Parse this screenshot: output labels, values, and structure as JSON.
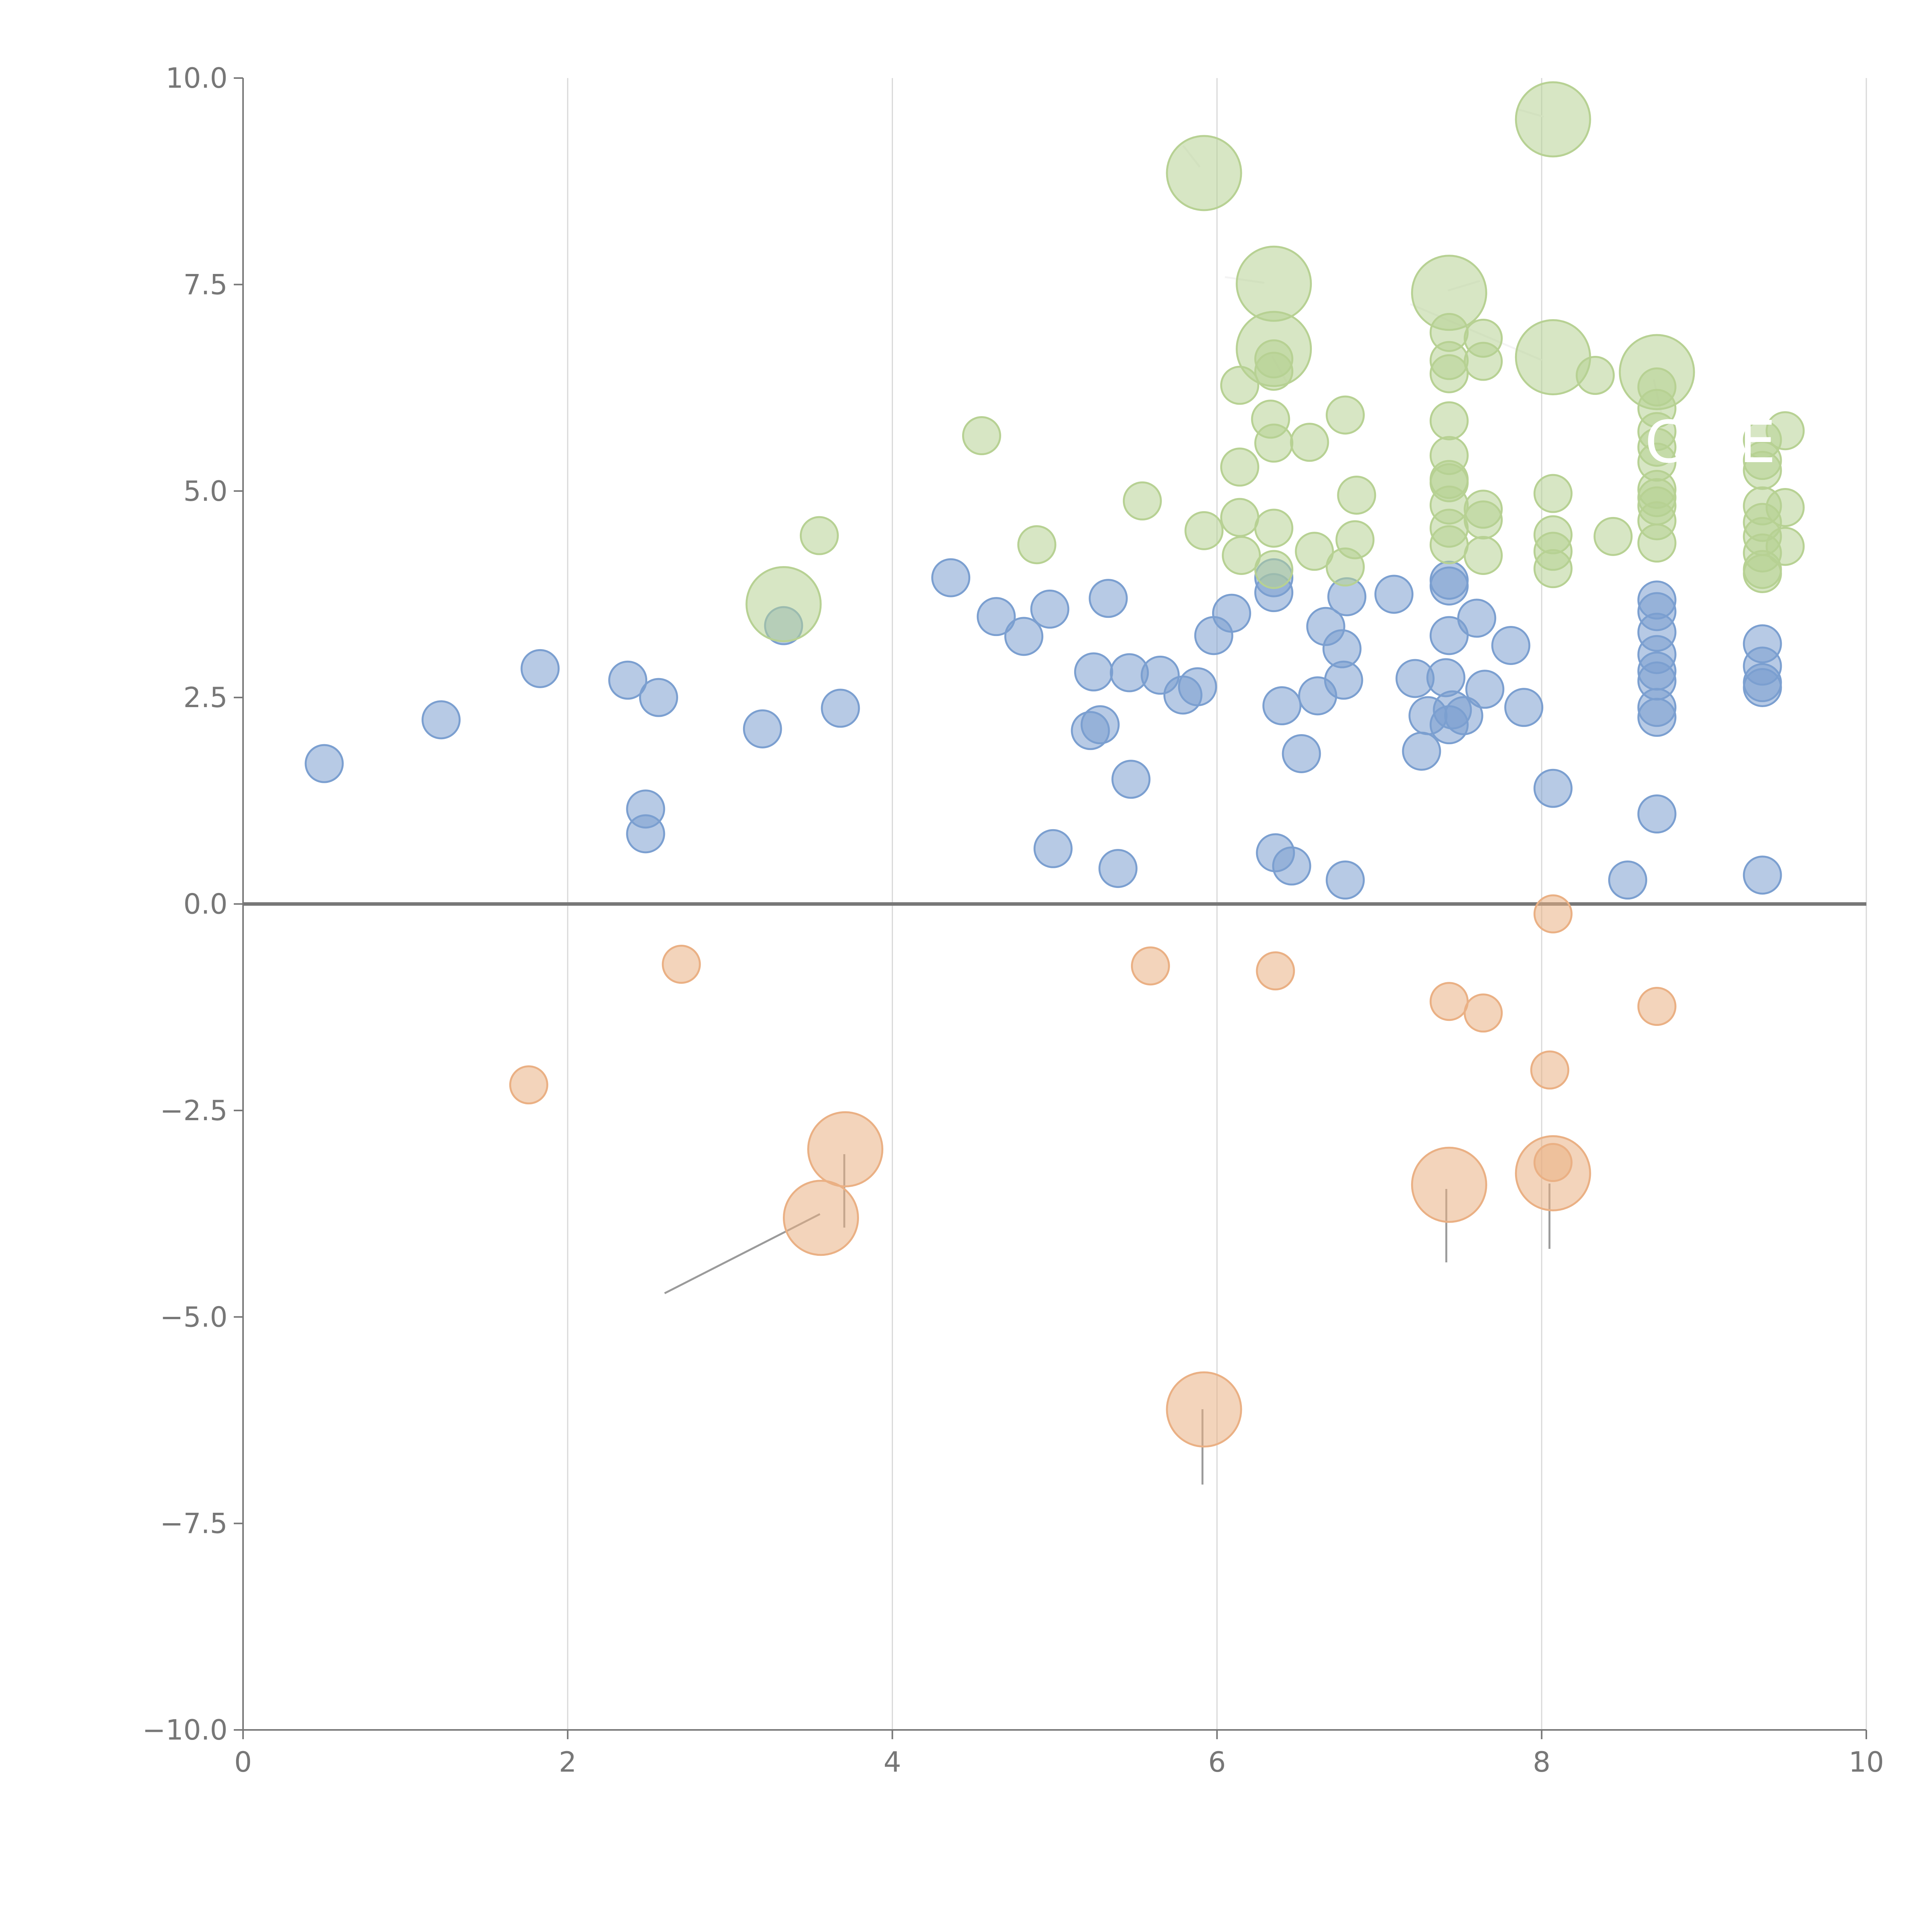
{
  "chart_data": {
    "type": "scatter",
    "title": "",
    "xlabel": "",
    "ylabel": "",
    "xlim": [
      0,
      10
    ],
    "ylim": [
      -10,
      10
    ],
    "grid": "vertical-only",
    "x_ticks": [
      "0",
      "2",
      "4",
      "6",
      "8",
      "10"
    ],
    "y_ticks": [
      "10.0",
      "7.5",
      "5.0",
      "2.5",
      "0.0",
      "−2.5",
      "−5.0",
      "−7.5",
      "−10.0"
    ],
    "x_tick_values": [
      0,
      2,
      4,
      6,
      8,
      10
    ],
    "y_tick_values": [
      10,
      7.5,
      5,
      2.5,
      0,
      -2.5,
      -5,
      -7.5,
      -10
    ],
    "zero_line": 0,
    "series": [
      {
        "name": "blue",
        "color": "#7b9fd0",
        "points": [
          {
            "x": 0.5,
            "y": 1.7,
            "s": 1
          },
          {
            "x": 1.22,
            "y": 2.23,
            "s": 1
          },
          {
            "x": 1.83,
            "y": 2.85,
            "s": 1
          },
          {
            "x": 2.37,
            "y": 2.71,
            "s": 1
          },
          {
            "x": 2.56,
            "y": 2.5,
            "s": 1
          },
          {
            "x": 2.48,
            "y": 1.15,
            "s": 1
          },
          {
            "x": 2.48,
            "y": 0.85,
            "s": 1
          },
          {
            "x": 3.2,
            "y": 2.12,
            "s": 1
          },
          {
            "x": 3.33,
            "y": 3.37,
            "s": 1
          },
          {
            "x": 3.68,
            "y": 2.37,
            "s": 1
          },
          {
            "x": 4.36,
            "y": 3.95,
            "s": 1
          },
          {
            "x": 4.64,
            "y": 3.48,
            "s": 1
          },
          {
            "x": 4.81,
            "y": 3.24,
            "s": 1
          },
          {
            "x": 4.97,
            "y": 3.57,
            "s": 1
          },
          {
            "x": 4.99,
            "y": 0.67,
            "s": 1
          },
          {
            "x": 5.24,
            "y": 2.81,
            "s": 1
          },
          {
            "x": 5.22,
            "y": 2.1,
            "s": 1
          },
          {
            "x": 5.28,
            "y": 2.17,
            "s": 1
          },
          {
            "x": 5.33,
            "y": 3.7,
            "s": 1
          },
          {
            "x": 5.39,
            "y": 0.43,
            "s": 1
          },
          {
            "x": 5.46,
            "y": 2.8,
            "s": 1
          },
          {
            "x": 5.47,
            "y": 1.51,
            "s": 1
          },
          {
            "x": 5.65,
            "y": 2.77,
            "s": 1
          },
          {
            "x": 5.79,
            "y": 2.53,
            "s": 1
          },
          {
            "x": 5.88,
            "y": 2.63,
            "s": 1
          },
          {
            "x": 5.98,
            "y": 3.25,
            "s": 1
          },
          {
            "x": 6.09,
            "y": 3.52,
            "s": 1
          },
          {
            "x": 6.35,
            "y": 3.77,
            "s": 1
          },
          {
            "x": 6.35,
            "y": 3.95,
            "s": 1
          },
          {
            "x": 6.36,
            "y": 0.62,
            "s": 1
          },
          {
            "x": 6.4,
            "y": 2.4,
            "s": 1
          },
          {
            "x": 6.46,
            "y": 0.46,
            "s": 1
          },
          {
            "x": 6.52,
            "y": 1.82,
            "s": 1
          },
          {
            "x": 6.62,
            "y": 2.52,
            "s": 1
          },
          {
            "x": 6.67,
            "y": 3.36,
            "s": 1
          },
          {
            "x": 6.77,
            "y": 3.09,
            "s": 1
          },
          {
            "x": 6.78,
            "y": 2.71,
            "s": 1
          },
          {
            "x": 6.8,
            "y": 3.72,
            "s": 1
          },
          {
            "x": 6.79,
            "y": 0.29,
            "s": 1
          },
          {
            "x": 7.09,
            "y": 3.75,
            "s": 1
          },
          {
            "x": 7.22,
            "y": 2.73,
            "s": 1
          },
          {
            "x": 7.26,
            "y": 1.85,
            "s": 1
          },
          {
            "x": 7.3,
            "y": 2.28,
            "s": 1
          },
          {
            "x": 7.41,
            "y": 2.74,
            "s": 1
          },
          {
            "x": 7.43,
            "y": 3.25,
            "s": 1
          },
          {
            "x": 7.43,
            "y": 3.85,
            "s": 1
          },
          {
            "x": 7.43,
            "y": 3.92,
            "s": 1
          },
          {
            "x": 7.45,
            "y": 2.35,
            "s": 1
          },
          {
            "x": 7.43,
            "y": 2.17,
            "s": 1
          },
          {
            "x": 7.52,
            "y": 2.28,
            "s": 1
          },
          {
            "x": 7.6,
            "y": 3.46,
            "s": 1
          },
          {
            "x": 7.65,
            "y": 2.6,
            "s": 1
          },
          {
            "x": 7.81,
            "y": 3.13,
            "s": 1
          },
          {
            "x": 7.89,
            "y": 2.38,
            "s": 1
          },
          {
            "x": 8.07,
            "y": 1.4,
            "s": 1
          },
          {
            "x": 8.53,
            "y": 0.29,
            "s": 1
          },
          {
            "x": 8.71,
            "y": 3.68,
            "s": 1
          },
          {
            "x": 8.71,
            "y": 3.54,
            "s": 1
          },
          {
            "x": 8.71,
            "y": 3.29,
            "s": 1
          },
          {
            "x": 8.71,
            "y": 3.02,
            "s": 1
          },
          {
            "x": 8.71,
            "y": 2.82,
            "s": 1
          },
          {
            "x": 8.71,
            "y": 2.7,
            "s": 1
          },
          {
            "x": 8.71,
            "y": 2.38,
            "s": 1
          },
          {
            "x": 8.71,
            "y": 2.26,
            "s": 1
          },
          {
            "x": 8.71,
            "y": 1.09,
            "s": 1
          },
          {
            "x": 9.36,
            "y": 3.15,
            "s": 1
          },
          {
            "x": 9.36,
            "y": 2.88,
            "s": 1
          },
          {
            "x": 9.36,
            "y": 2.68,
            "s": 1
          },
          {
            "x": 9.36,
            "y": 2.62,
            "s": 1
          },
          {
            "x": 9.36,
            "y": 0.35,
            "s": 1
          }
        ]
      },
      {
        "name": "green",
        "color": "#b7d193",
        "points": [
          {
            "x": 3.33,
            "y": 3.63,
            "s": 2
          },
          {
            "x": 3.55,
            "y": 4.46,
            "s": 1
          },
          {
            "x": 4.55,
            "y": 5.67,
            "s": 1
          },
          {
            "x": 4.89,
            "y": 4.35,
            "s": 1
          },
          {
            "x": 5.54,
            "y": 4.88,
            "s": 1
          },
          {
            "x": 5.92,
            "y": 8.85,
            "s": 2
          },
          {
            "x": 5.92,
            "y": 4.52,
            "s": 1
          },
          {
            "x": 6.14,
            "y": 6.28,
            "s": 1
          },
          {
            "x": 6.14,
            "y": 5.29,
            "s": 1
          },
          {
            "x": 6.14,
            "y": 4.68,
            "s": 1
          },
          {
            "x": 6.15,
            "y": 4.22,
            "s": 1
          },
          {
            "x": 6.33,
            "y": 5.87,
            "s": 1
          },
          {
            "x": 6.35,
            "y": 7.51,
            "s": 2
          },
          {
            "x": 6.35,
            "y": 6.72,
            "s": 2
          },
          {
            "x": 6.35,
            "y": 6.6,
            "s": 1
          },
          {
            "x": 6.35,
            "y": 6.45,
            "s": 1
          },
          {
            "x": 6.35,
            "y": 5.58,
            "s": 1
          },
          {
            "x": 6.35,
            "y": 4.55,
            "s": 1
          },
          {
            "x": 6.35,
            "y": 4.05,
            "s": 1
          },
          {
            "x": 6.57,
            "y": 5.59,
            "s": 1
          },
          {
            "x": 6.6,
            "y": 4.27,
            "s": 1
          },
          {
            "x": 6.79,
            "y": 5.92,
            "s": 1
          },
          {
            "x": 6.79,
            "y": 4.08,
            "s": 1
          },
          {
            "x": 6.86,
            "y": 4.95,
            "s": 1
          },
          {
            "x": 6.85,
            "y": 4.41,
            "s": 1
          },
          {
            "x": 7.43,
            "y": 7.4,
            "s": 2
          },
          {
            "x": 7.43,
            "y": 6.92,
            "s": 1
          },
          {
            "x": 7.43,
            "y": 6.58,
            "s": 1
          },
          {
            "x": 7.43,
            "y": 6.42,
            "s": 1
          },
          {
            "x": 7.43,
            "y": 5.85,
            "s": 1
          },
          {
            "x": 7.43,
            "y": 5.43,
            "s": 1
          },
          {
            "x": 7.43,
            "y": 5.14,
            "s": 1
          },
          {
            "x": 7.43,
            "y": 5.1,
            "s": 1
          },
          {
            "x": 7.43,
            "y": 4.83,
            "s": 1
          },
          {
            "x": 7.43,
            "y": 4.55,
            "s": 1
          },
          {
            "x": 7.43,
            "y": 4.35,
            "s": 1
          },
          {
            "x": 7.64,
            "y": 6.85,
            "s": 1
          },
          {
            "x": 7.64,
            "y": 6.57,
            "s": 1
          },
          {
            "x": 7.64,
            "y": 4.78,
            "s": 1
          },
          {
            "x": 7.64,
            "y": 4.65,
            "s": 1
          },
          {
            "x": 7.64,
            "y": 4.22,
            "s": 1
          },
          {
            "x": 8.07,
            "y": 9.5,
            "s": 2
          },
          {
            "x": 8.07,
            "y": 6.62,
            "s": 2
          },
          {
            "x": 8.07,
            "y": 4.97,
            "s": 1
          },
          {
            "x": 8.07,
            "y": 4.47,
            "s": 1
          },
          {
            "x": 8.07,
            "y": 4.27,
            "s": 1
          },
          {
            "x": 8.07,
            "y": 4.06,
            "s": 1
          },
          {
            "x": 8.33,
            "y": 6.4,
            "s": 1
          },
          {
            "x": 8.44,
            "y": 4.45,
            "s": 1
          },
          {
            "x": 8.71,
            "y": 6.44,
            "s": 2
          },
          {
            "x": 8.71,
            "y": 6.26,
            "s": 1
          },
          {
            "x": 8.71,
            "y": 6.0,
            "s": 1
          },
          {
            "x": 8.71,
            "y": 5.72,
            "s": 1
          },
          {
            "x": 8.71,
            "y": 5.53,
            "s": 1
          },
          {
            "x": 8.71,
            "y": 5.35,
            "s": 1
          },
          {
            "x": 8.71,
            "y": 5.02,
            "s": 1
          },
          {
            "x": 8.71,
            "y": 4.92,
            "s": 1
          },
          {
            "x": 8.71,
            "y": 4.82,
            "s": 1
          },
          {
            "x": 8.71,
            "y": 4.64,
            "s": 1
          },
          {
            "x": 8.71,
            "y": 4.37,
            "s": 1
          },
          {
            "x": 9.36,
            "y": 5.62,
            "s": 1
          },
          {
            "x": 9.36,
            "y": 5.37,
            "s": 1
          },
          {
            "x": 9.36,
            "y": 5.25,
            "s": 1
          },
          {
            "x": 9.36,
            "y": 4.82,
            "s": 1
          },
          {
            "x": 9.36,
            "y": 4.62,
            "s": 1
          },
          {
            "x": 9.36,
            "y": 4.45,
            "s": 1
          },
          {
            "x": 9.36,
            "y": 4.25,
            "s": 1
          },
          {
            "x": 9.36,
            "y": 4.05,
            "s": 1
          },
          {
            "x": 9.36,
            "y": 4.0,
            "s": 1
          },
          {
            "x": 9.5,
            "y": 5.73,
            "s": 1
          },
          {
            "x": 9.5,
            "y": 4.8,
            "s": 1
          },
          {
            "x": 9.5,
            "y": 4.33,
            "s": 1
          }
        ]
      },
      {
        "name": "orange",
        "color": "#eab084",
        "points": [
          {
            "x": 1.76,
            "y": -2.19,
            "s": 1
          },
          {
            "x": 2.7,
            "y": -0.73,
            "s": 1
          },
          {
            "x": 3.56,
            "y": -3.8,
            "s": 2
          },
          {
            "x": 3.71,
            "y": -2.97,
            "s": 2
          },
          {
            "x": 5.59,
            "y": -0.75,
            "s": 1
          },
          {
            "x": 5.92,
            "y": -6.12,
            "s": 2
          },
          {
            "x": 6.36,
            "y": -0.81,
            "s": 1
          },
          {
            "x": 7.43,
            "y": -3.4,
            "s": 2
          },
          {
            "x": 7.43,
            "y": -1.18,
            "s": 1
          },
          {
            "x": 7.64,
            "y": -1.32,
            "s": 1
          },
          {
            "x": 8.07,
            "y": -0.12,
            "s": 1
          },
          {
            "x": 8.05,
            "y": -2.01,
            "s": 1
          },
          {
            "x": 8.07,
            "y": -3.26,
            "s": 2
          },
          {
            "x": 8.07,
            "y": -3.13,
            "s": 1
          },
          {
            "x": 8.71,
            "y": -1.24,
            "s": 1
          }
        ]
      }
    ],
    "annotations": [
      {
        "text": "C",
        "x": 8.76,
        "y": 5.35
      },
      {
        "text": "E",
        "x": 9.33,
        "y": 5.35
      }
    ]
  }
}
